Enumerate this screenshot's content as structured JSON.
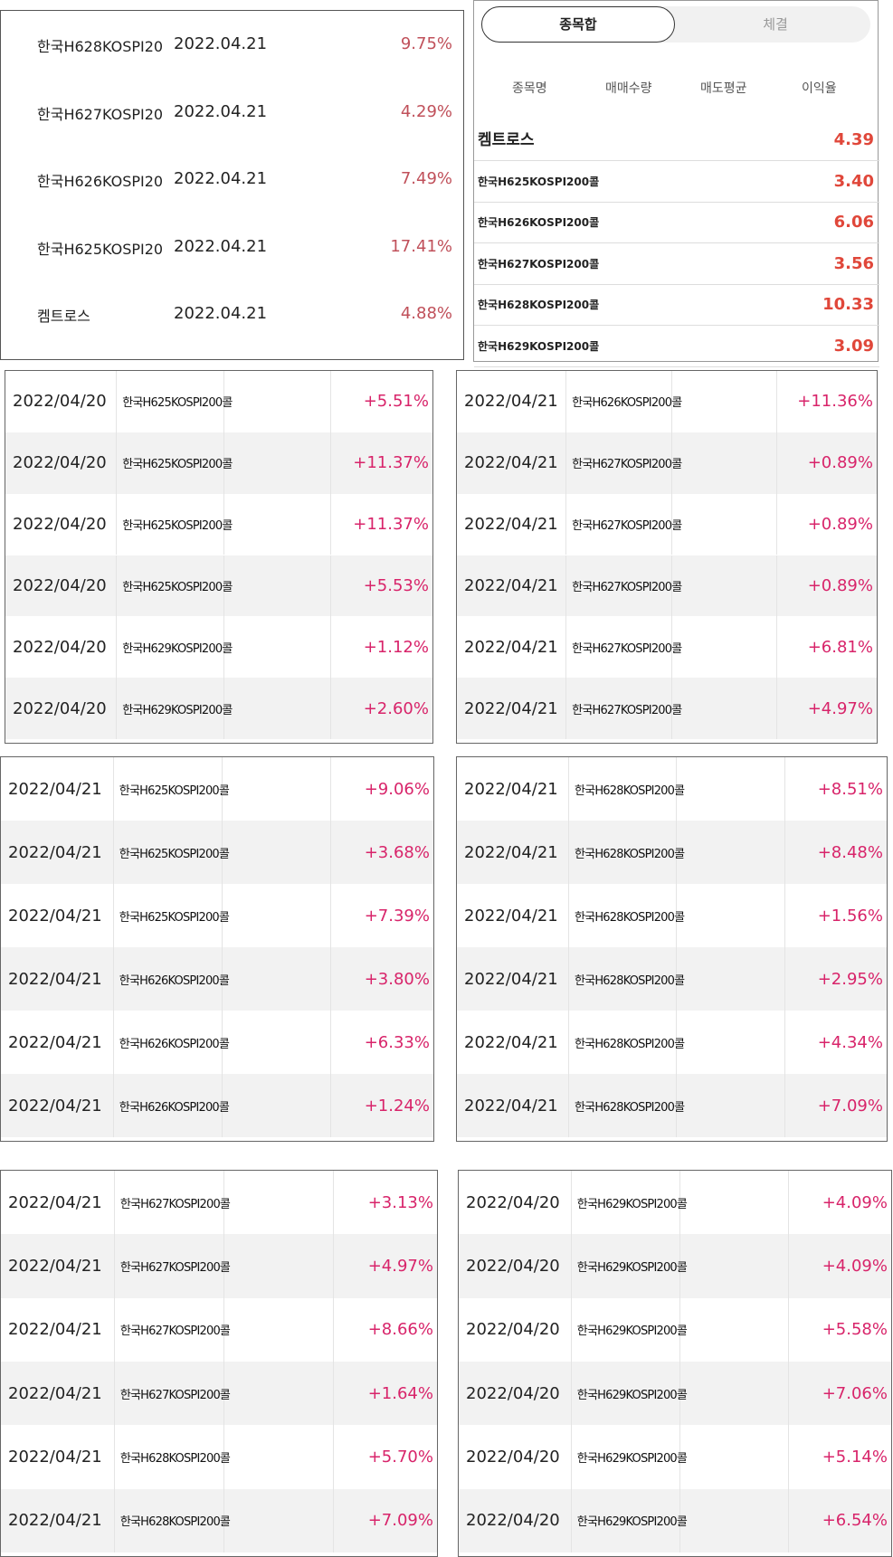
{
  "summary_list": {
    "rows": [
      [
        "한국H628KOSPI20",
        "2022.04.21",
        "9.75%"
      ],
      [
        "한국H627KOSPI20",
        "2022.04.21",
        "4.29%"
      ],
      [
        "한국H626KOSPI20",
        "2022.04.21",
        "7.49%"
      ],
      [
        "한국H625KOSPI20",
        "2022.04.21",
        "17.41%"
      ],
      [
        "켐트로스",
        "2022.04.21",
        "4.88%"
      ]
    ]
  },
  "position_panel": {
    "tabs": [
      "종목합",
      "체결"
    ],
    "headers": [
      "종목명",
      "매매수량",
      "매도평균",
      "이익율"
    ],
    "rows": [
      [
        "켐트로스",
        "4.39"
      ],
      [
        "한국H625KOSPI200콜",
        "3.40"
      ],
      [
        "한국H626KOSPI200콜",
        "6.06"
      ],
      [
        "한국H627KOSPI200콜",
        "3.56"
      ],
      [
        "한국H628KOSPI200콜",
        "10.33"
      ],
      [
        "한국H629KOSPI200콜",
        "3.09"
      ]
    ]
  },
  "trade_tables": [
    {
      "rows": [
        [
          "2022/04/20",
          "한국H625KOSPI200콜",
          "+5.51%"
        ],
        [
          "2022/04/20",
          "한국H625KOSPI200콜",
          "+11.37%"
        ],
        [
          "2022/04/20",
          "한국H625KOSPI200콜",
          "+11.37%"
        ],
        [
          "2022/04/20",
          "한국H625KOSPI200콜",
          "+5.53%"
        ],
        [
          "2022/04/20",
          "한국H629KOSPI200콜",
          "+1.12%"
        ],
        [
          "2022/04/20",
          "한국H629KOSPI200콜",
          "+2.60%"
        ]
      ]
    },
    {
      "rows": [
        [
          "2022/04/21",
          "한국H626KOSPI200콜",
          "+11.36%"
        ],
        [
          "2022/04/21",
          "한국H627KOSPI200콜",
          "+0.89%"
        ],
        [
          "2022/04/21",
          "한국H627KOSPI200콜",
          "+0.89%"
        ],
        [
          "2022/04/21",
          "한국H627KOSPI200콜",
          "+0.89%"
        ],
        [
          "2022/04/21",
          "한국H627KOSPI200콜",
          "+6.81%"
        ],
        [
          "2022/04/21",
          "한국H627KOSPI200콜",
          "+4.97%"
        ]
      ]
    },
    {
      "rows": [
        [
          "2022/04/21",
          "한국H625KOSPI200콜",
          "+9.06%"
        ],
        [
          "2022/04/21",
          "한국H625KOSPI200콜",
          "+3.68%"
        ],
        [
          "2022/04/21",
          "한국H625KOSPI200콜",
          "+7.39%"
        ],
        [
          "2022/04/21",
          "한국H626KOSPI200콜",
          "+3.80%"
        ],
        [
          "2022/04/21",
          "한국H626KOSPI200콜",
          "+6.33%"
        ],
        [
          "2022/04/21",
          "한국H626KOSPI200콜",
          "+1.24%"
        ]
      ]
    },
    {
      "rows": [
        [
          "2022/04/21",
          "한국H628KOSPI200콜",
          "+8.51%"
        ],
        [
          "2022/04/21",
          "한국H628KOSPI200콜",
          "+8.48%"
        ],
        [
          "2022/04/21",
          "한국H628KOSPI200콜",
          "+1.56%"
        ],
        [
          "2022/04/21",
          "한국H628KOSPI200콜",
          "+2.95%"
        ],
        [
          "2022/04/21",
          "한국H628KOSPI200콜",
          "+4.34%"
        ],
        [
          "2022/04/21",
          "한국H628KOSPI200콜",
          "+7.09%"
        ]
      ]
    },
    {
      "rows": [
        [
          "2022/04/21",
          "한국H627KOSPI200콜",
          "+3.13%"
        ],
        [
          "2022/04/21",
          "한국H627KOSPI200콜",
          "+4.97%"
        ],
        [
          "2022/04/21",
          "한국H627KOSPI200콜",
          "+8.66%"
        ],
        [
          "2022/04/21",
          "한국H627KOSPI200콜",
          "+1.64%"
        ],
        [
          "2022/04/21",
          "한국H628KOSPI200콜",
          "+5.70%"
        ],
        [
          "2022/04/21",
          "한국H628KOSPI200콜",
          "+7.09%"
        ]
      ]
    },
    {
      "rows": [
        [
          "2022/04/20",
          "한국H629KOSPI200콜",
          "+4.09%"
        ],
        [
          "2022/04/20",
          "한국H629KOSPI200콜",
          "+4.09%"
        ],
        [
          "2022/04/20",
          "한국H629KOSPI200콜",
          "+5.58%"
        ],
        [
          "2022/04/20",
          "한국H629KOSPI200콜",
          "+7.06%"
        ],
        [
          "2022/04/20",
          "한국H629KOSPI200콜",
          "+5.14%"
        ],
        [
          "2022/04/20",
          "한국H629KOSPI200콜",
          "+6.54%"
        ]
      ]
    }
  ]
}
